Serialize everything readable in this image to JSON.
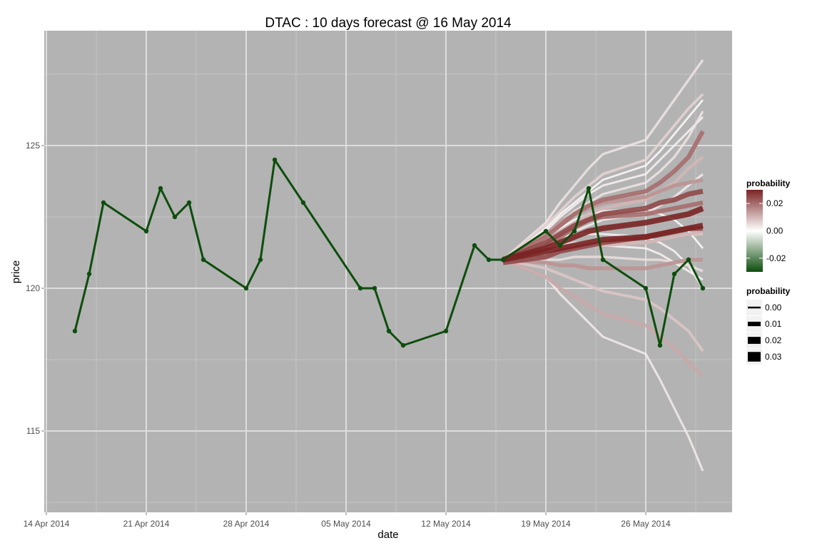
{
  "chart_data": {
    "type": "line",
    "title": "DTAC :  10  days forecast @  16 May 2014",
    "xlabel": "date",
    "ylabel": "price",
    "x_ticks": [
      "14 Apr 2014",
      "21 Apr 2014",
      "28 Apr 2014",
      "05 May 2014",
      "12 May 2014",
      "19 May 2014",
      "26 May 2014"
    ],
    "y_ticks": [
      "115",
      "120",
      "125"
    ],
    "x_range": [
      "2014-04-14",
      "2014-05-31"
    ],
    "ylim": [
      112.5,
      129
    ],
    "grid": true,
    "colors": {
      "panel": "#b3b3b3",
      "grid_major": "#dddddd",
      "grid_minor": "#c4c4c4",
      "price": "#0d4d0d",
      "prob_high": "#7a2424",
      "prob_mid": "#ffffff",
      "prob_low": "#0d4d0d"
    },
    "price_series": {
      "name": "price",
      "x": [
        "2014-04-16",
        "2014-04-17",
        "2014-04-18",
        "2014-04-21",
        "2014-04-22",
        "2014-04-23",
        "2014-04-24",
        "2014-04-25",
        "2014-04-28",
        "2014-04-29",
        "2014-04-30",
        "2014-05-02",
        "2014-05-06",
        "2014-05-07",
        "2014-05-08",
        "2014-05-09",
        "2014-05-12",
        "2014-05-14",
        "2014-05-15",
        "2014-05-16",
        "2014-05-19",
        "2014-05-20",
        "2014-05-21",
        "2014-05-22",
        "2014-05-23",
        "2014-05-26",
        "2014-05-27",
        "2014-05-28",
        "2014-05-29",
        "2014-05-30"
      ],
      "y": [
        118.5,
        120.5,
        123.0,
        122.0,
        123.5,
        122.5,
        123.0,
        121.0,
        120.0,
        121.0,
        124.5,
        123.0,
        120.0,
        120.0,
        118.5,
        118.0,
        118.5,
        121.5,
        121.0,
        121.0,
        122.0,
        121.5,
        122.0,
        123.5,
        121.0,
        120.0,
        118.0,
        120.5,
        121.0,
        120.0
      ]
    },
    "forecast": {
      "x": [
        "2014-05-16",
        "2014-05-19",
        "2014-05-20",
        "2014-05-21",
        "2014-05-22",
        "2014-05-23",
        "2014-05-26",
        "2014-05-27",
        "2014-05-28",
        "2014-05-29",
        "2014-05-30"
      ],
      "series": [
        {
          "probability": 0.03,
          "y": [
            121.0,
            121.3,
            121.4,
            121.5,
            121.6,
            121.7,
            121.8,
            121.9,
            122.0,
            122.1,
            122.2
          ]
        },
        {
          "probability": 0.03,
          "y": [
            121.0,
            121.4,
            121.6,
            121.8,
            122.0,
            122.1,
            122.3,
            122.4,
            122.5,
            122.6,
            122.8
          ]
        },
        {
          "probability": 0.025,
          "y": [
            120.9,
            121.1,
            121.3,
            121.4,
            121.5,
            121.6,
            121.8,
            121.9,
            122.0,
            122.1,
            122.1
          ]
        },
        {
          "probability": 0.025,
          "y": [
            121.0,
            121.6,
            121.9,
            122.2,
            122.4,
            122.6,
            122.8,
            123.0,
            123.1,
            123.3,
            123.4
          ]
        },
        {
          "probability": 0.02,
          "y": [
            121.0,
            121.8,
            122.2,
            122.6,
            122.9,
            123.1,
            123.4,
            123.7,
            124.1,
            124.6,
            125.5
          ]
        },
        {
          "probability": 0.02,
          "y": [
            121.0,
            121.5,
            121.8,
            122.1,
            122.4,
            122.5,
            122.6,
            122.7,
            122.8,
            122.9,
            123.0
          ]
        },
        {
          "probability": 0.015,
          "y": [
            121.0,
            121.9,
            122.3,
            122.6,
            122.8,
            123.0,
            123.2,
            123.4,
            123.6,
            123.7,
            123.8
          ]
        },
        {
          "probability": 0.015,
          "y": [
            121.0,
            120.9,
            120.8,
            120.8,
            120.7,
            120.7,
            120.7,
            120.8,
            120.9,
            121.0,
            121.0
          ]
        },
        {
          "probability": 0.012,
          "y": [
            121.0,
            120.4,
            120.0,
            119.7,
            119.4,
            119.1,
            118.7,
            118.3,
            117.9,
            117.4,
            116.9
          ]
        },
        {
          "probability": 0.01,
          "y": [
            121.0,
            121.2,
            121.3,
            121.4,
            121.5,
            121.5,
            121.6,
            121.7,
            121.8,
            121.9,
            122.0
          ]
        },
        {
          "probability": 0.01,
          "y": [
            121.0,
            121.7,
            122.0,
            122.3,
            122.6,
            122.8,
            123.1,
            123.4,
            123.7,
            124.2,
            124.6
          ]
        },
        {
          "probability": 0.008,
          "y": [
            121.0,
            120.7,
            120.5,
            120.3,
            120.1,
            119.9,
            119.6,
            119.3,
            118.9,
            118.5,
            117.8
          ]
        },
        {
          "probability": 0.008,
          "y": [
            121.0,
            121.3,
            121.4,
            121.5,
            121.6,
            121.6,
            121.6,
            121.7,
            121.8,
            121.9,
            121.9
          ]
        },
        {
          "probability": 0.006,
          "y": [
            121.0,
            122.2,
            122.7,
            123.2,
            123.6,
            124.0,
            124.5,
            125.1,
            125.7,
            126.3,
            126.8
          ]
        },
        {
          "probability": 0.005,
          "y": [
            121.0,
            121.0,
            121.0,
            121.1,
            121.1,
            121.1,
            121.0,
            121.0,
            120.9,
            120.8,
            120.6
          ]
        },
        {
          "probability": 0.004,
          "y": [
            121.0,
            122.3,
            123.0,
            123.6,
            124.2,
            124.7,
            125.2,
            125.9,
            126.6,
            127.3,
            128.0
          ]
        },
        {
          "probability": 0.004,
          "y": [
            121.0,
            121.9,
            122.3,
            122.7,
            123.0,
            123.3,
            123.7,
            124.1,
            124.6,
            125.3,
            126.2
          ]
        },
        {
          "probability": 0.003,
          "y": [
            121.0,
            120.4,
            119.8,
            119.3,
            118.8,
            118.3,
            117.7,
            116.8,
            115.8,
            114.8,
            113.6
          ]
        },
        {
          "probability": 0.003,
          "y": [
            121.0,
            121.6,
            121.8,
            122.0,
            122.2,
            122.4,
            122.6,
            122.9,
            123.2,
            123.6,
            124.0
          ]
        },
        {
          "probability": 0.002,
          "y": [
            121.0,
            122.0,
            122.5,
            122.9,
            123.3,
            123.6,
            124.0,
            124.5,
            125.0,
            125.5,
            126.0
          ]
        },
        {
          "probability": 0.002,
          "y": [
            121.0,
            121.6,
            121.8,
            121.9,
            121.9,
            121.9,
            121.8,
            121.6,
            121.3,
            120.8,
            120.0
          ]
        },
        {
          "probability": 0.002,
          "y": [
            121.0,
            121.4,
            121.5,
            121.6,
            121.6,
            121.5,
            121.4,
            121.2,
            120.9,
            120.6,
            120.3
          ]
        },
        {
          "probability": 0.001,
          "y": [
            121.0,
            122.1,
            122.6,
            123.0,
            123.4,
            123.8,
            124.3,
            124.8,
            125.4,
            126.0,
            126.6
          ]
        },
        {
          "probability": 0.001,
          "y": [
            121.0,
            121.8,
            122.1,
            122.4,
            122.6,
            122.7,
            122.8,
            122.6,
            122.4,
            122.0,
            121.4
          ]
        }
      ]
    },
    "legend_color": {
      "title": "probability",
      "labels": [
        "0.02",
        "0.00",
        "-0.02"
      ],
      "values": [
        0.02,
        0.0,
        -0.02
      ],
      "range": [
        -0.03,
        0.03
      ]
    },
    "legend_size": {
      "title": "probability",
      "labels": [
        "0.00",
        "0.01",
        "0.02",
        "0.03"
      ],
      "values": [
        0.0,
        0.01,
        0.02,
        0.03
      ]
    }
  }
}
